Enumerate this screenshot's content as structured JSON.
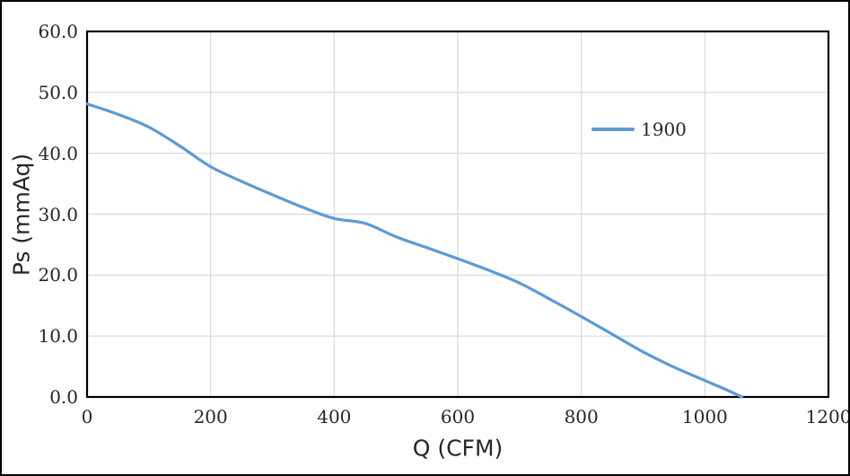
{
  "figure": {
    "background": "#ffffff",
    "frame_color": "#000000"
  },
  "chart_data": {
    "type": "line",
    "title": "",
    "xlabel": "Q（CFM）",
    "ylabel": "Ps（mmAq）",
    "xlim": [
      0,
      1200
    ],
    "ylim": [
      0,
      60
    ],
    "x_ticks": [
      0,
      200,
      400,
      600,
      800,
      1000,
      1200
    ],
    "x_tick_labels": [
      "0",
      "200",
      "400",
      "600",
      "800",
      "1000",
      "1200"
    ],
    "y_ticks": [
      0,
      10,
      20,
      30,
      40,
      50,
      60
    ],
    "y_tick_labels": [
      "0.0",
      "10.0",
      "20.0",
      "30.0",
      "40.0",
      "50.0",
      "60.0"
    ],
    "grid": true,
    "gridline_color": "#d9d9d9",
    "axis_border_color": "#000000",
    "tick_label_color": "#262626",
    "legend": {
      "position": "inside-upper-right",
      "entries": [
        {
          "label": "1900",
          "color": "#5b9bd5"
        }
      ]
    },
    "series": [
      {
        "name": "1900",
        "color": "#5b9bd5",
        "line_width": 3.2,
        "points": [
          [
            0,
            48.1
          ],
          [
            50,
            46.4
          ],
          [
            100,
            44.3
          ],
          [
            150,
            41.2
          ],
          [
            200,
            37.8
          ],
          [
            250,
            35.4
          ],
          [
            300,
            33.2
          ],
          [
            350,
            31.1
          ],
          [
            400,
            29.3
          ],
          [
            450,
            28.5
          ],
          [
            500,
            26.3
          ],
          [
            550,
            24.5
          ],
          [
            600,
            22.7
          ],
          [
            650,
            20.8
          ],
          [
            700,
            18.7
          ],
          [
            750,
            16.0
          ],
          [
            800,
            13.2
          ],
          [
            850,
            10.3
          ],
          [
            900,
            7.4
          ],
          [
            950,
            4.9
          ],
          [
            1000,
            2.7
          ],
          [
            1030,
            1.4
          ],
          [
            1060,
            0.0
          ]
        ]
      }
    ]
  }
}
